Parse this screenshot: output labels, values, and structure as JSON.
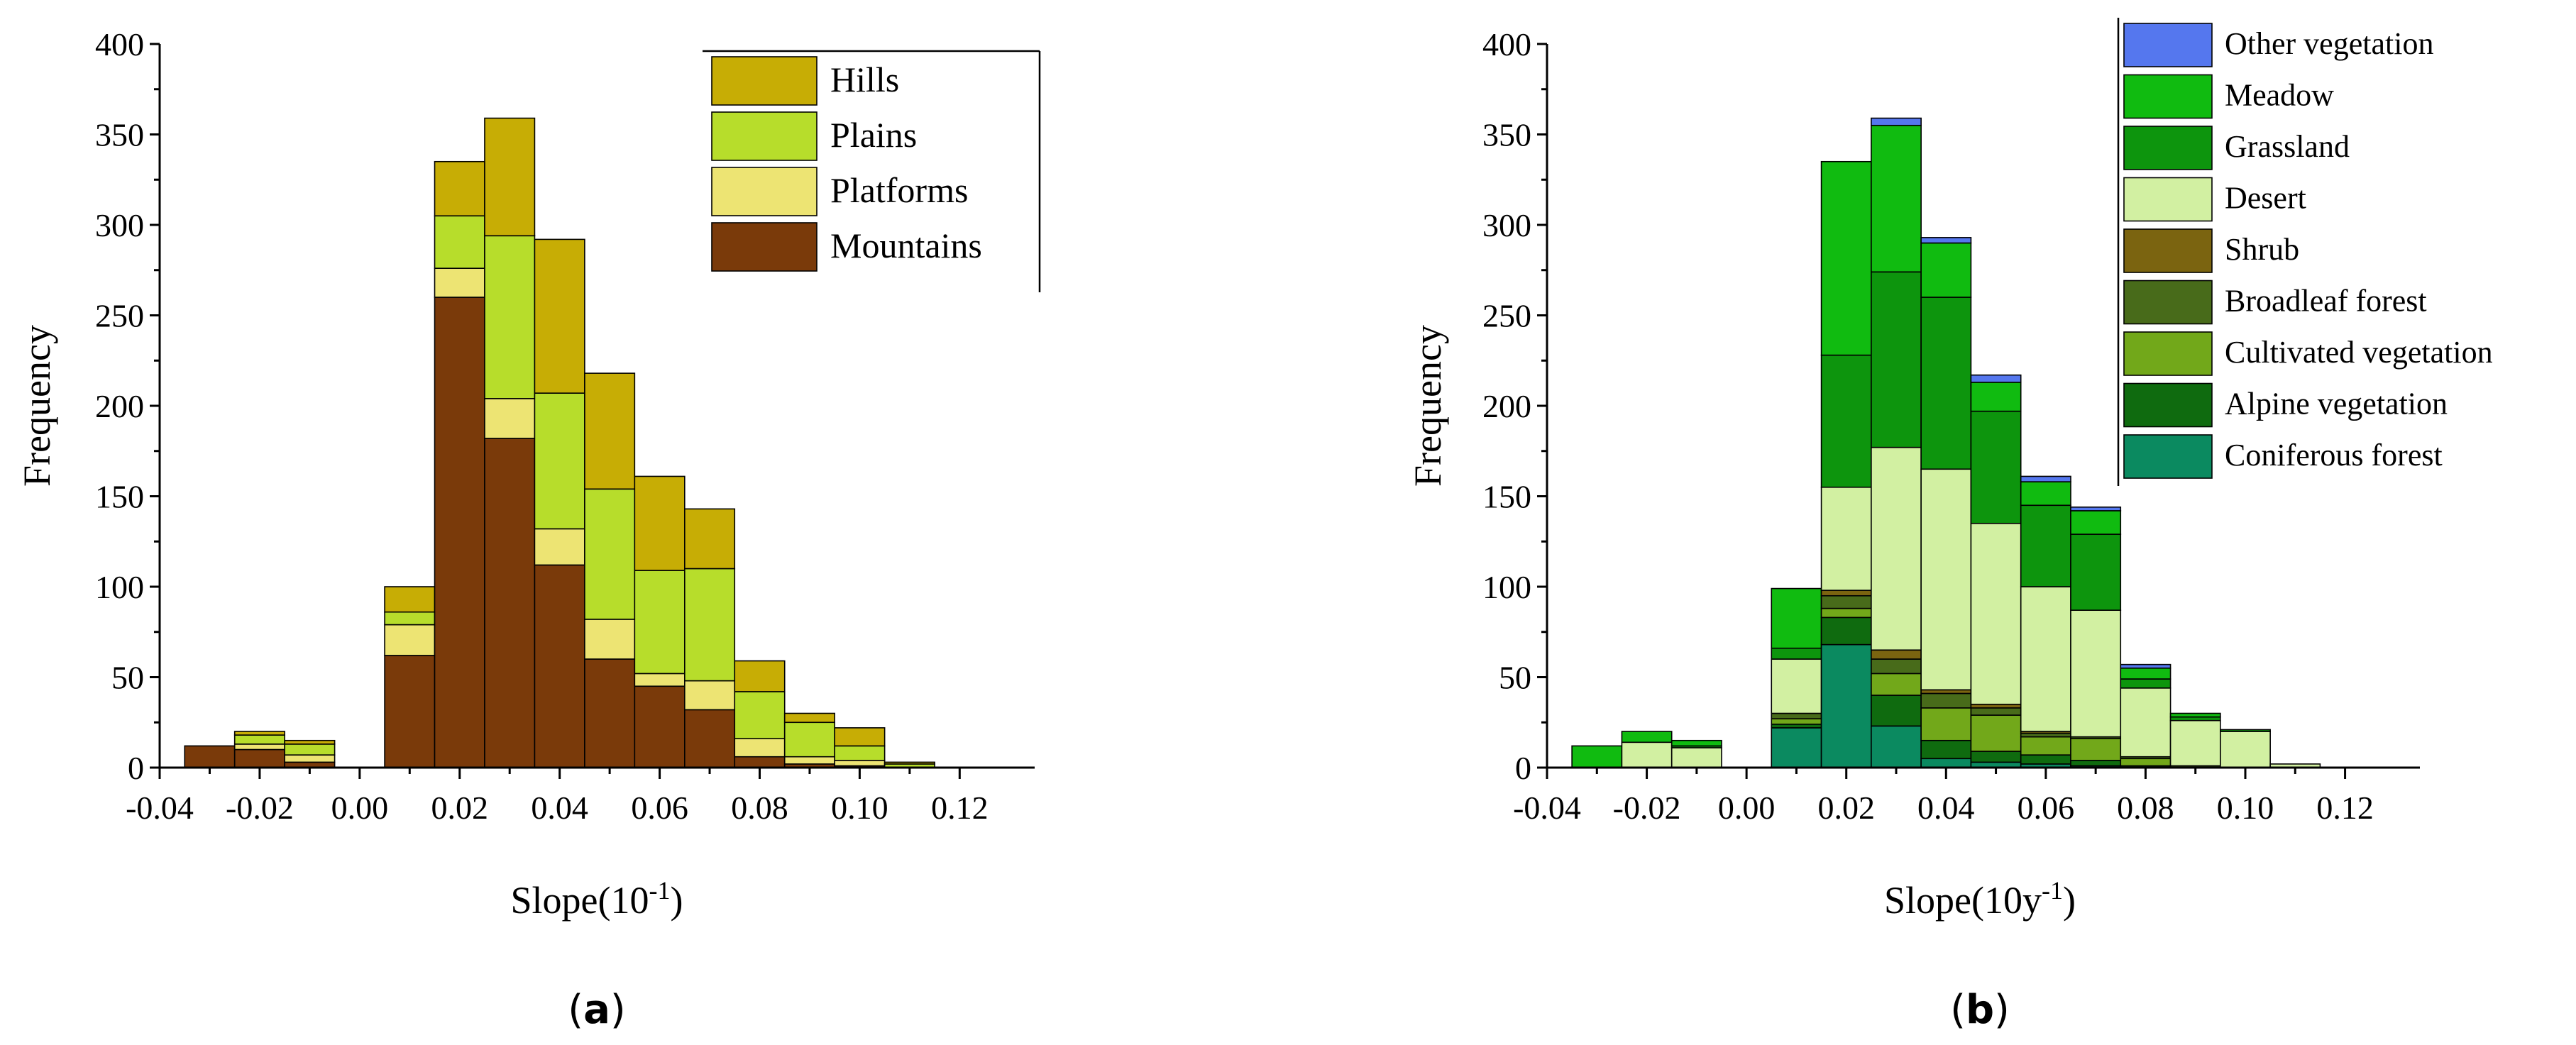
{
  "chart_data": [
    {
      "type": "bar",
      "stacked": true,
      "panel_label_open": "(",
      "panel_label_letter": "a",
      "panel_label_close": ")",
      "xlabel_main": "Slope(10",
      "xlabel_sup": "-1",
      "xlabel_close": ")",
      "ylabel": "Frequency",
      "xlim": [
        -0.04,
        0.135
      ],
      "ylim": [
        0,
        400
      ],
      "xticks": [
        "-0.04",
        "-0.02",
        "0.00",
        "0.02",
        "0.04",
        "0.06",
        "0.08",
        "0.10",
        "0.12"
      ],
      "yticks": [
        "0",
        "50",
        "100",
        "150",
        "200",
        "250",
        "300",
        "350",
        "400"
      ],
      "bin_width": 0.01,
      "bins": [
        -0.03,
        -0.02,
        -0.01,
        0.0,
        0.01,
        0.02,
        0.03,
        0.04,
        0.05,
        0.06,
        0.07,
        0.08,
        0.09,
        0.1,
        0.11,
        0.12
      ],
      "legend_position": "top-right",
      "series": [
        {
          "name": "Mountains",
          "color": "#7a3a0a",
          "values": [
            12,
            10,
            3,
            0,
            62,
            260,
            182,
            112,
            60,
            45,
            32,
            6,
            2,
            1,
            0,
            0
          ]
        },
        {
          "name": "Platforms",
          "color": "#ede473",
          "values": [
            0,
            3,
            4,
            0,
            17,
            16,
            22,
            20,
            22,
            7,
            16,
            10,
            4,
            3,
            0,
            0
          ]
        },
        {
          "name": "Plains",
          "color": "#b7dd2b",
          "values": [
            0,
            5,
            6,
            0,
            7,
            29,
            90,
            75,
            72,
            57,
            62,
            26,
            19,
            8,
            2,
            0
          ]
        },
        {
          "name": "Hills",
          "color": "#c7ad05",
          "values": [
            0,
            2,
            2,
            0,
            14,
            30,
            65,
            85,
            64,
            52,
            33,
            17,
            5,
            10,
            1,
            0
          ]
        }
      ]
    },
    {
      "type": "bar",
      "stacked": true,
      "panel_label_open": "(",
      "panel_label_letter": "b",
      "panel_label_close": ")",
      "xlabel_main": "Slope(10y",
      "xlabel_sup": "-1",
      "xlabel_close": ")",
      "ylabel": "Frequency",
      "xlim": [
        -0.04,
        0.135
      ],
      "ylim": [
        0,
        400
      ],
      "xticks": [
        "-0.04",
        "-0.02",
        "0.00",
        "0.02",
        "0.04",
        "0.06",
        "0.08",
        "0.10",
        "0.12"
      ],
      "yticks": [
        "0",
        "50",
        "100",
        "150",
        "200",
        "250",
        "300",
        "350",
        "400"
      ],
      "bin_width": 0.01,
      "bins": [
        -0.03,
        -0.02,
        -0.01,
        0.0,
        0.01,
        0.02,
        0.03,
        0.04,
        0.05,
        0.06,
        0.07,
        0.08,
        0.09,
        0.1,
        0.11,
        0.12
      ],
      "legend_position": "top-right",
      "series": [
        {
          "name": "Coniferous forest",
          "color": "#0b8a60",
          "values": [
            0,
            0,
            0,
            0,
            22,
            68,
            23,
            5,
            3,
            2,
            1,
            0,
            0,
            0,
            0,
            0
          ]
        },
        {
          "name": "Alpine vegetation",
          "color": "#0f6b0f",
          "values": [
            0,
            0,
            0,
            0,
            2,
            15,
            17,
            10,
            6,
            5,
            3,
            1,
            0,
            0,
            0,
            0
          ]
        },
        {
          "name": "Cultivated vegetation",
          "color": "#72a81a",
          "values": [
            0,
            0,
            0,
            0,
            3,
            5,
            12,
            18,
            20,
            10,
            12,
            4,
            1,
            0,
            0,
            0
          ]
        },
        {
          "name": "Broadleaf forest",
          "color": "#486b1a",
          "values": [
            0,
            0,
            0,
            0,
            3,
            7,
            8,
            8,
            4,
            2,
            1,
            1,
            0,
            0,
            0,
            0
          ]
        },
        {
          "name": "Shrub",
          "color": "#7b6410",
          "values": [
            0,
            0,
            0,
            0,
            0,
            3,
            5,
            2,
            2,
            1,
            0,
            0,
            0,
            0,
            0,
            0
          ]
        },
        {
          "name": "Desert",
          "color": "#d2f0a2",
          "values": [
            0,
            14,
            11,
            0,
            30,
            57,
            112,
            122,
            100,
            80,
            70,
            38,
            25,
            20,
            2,
            0
          ]
        },
        {
          "name": "Grassland",
          "color": "#0d950d",
          "values": [
            0,
            0,
            1,
            0,
            6,
            73,
            97,
            95,
            62,
            45,
            42,
            5,
            2,
            1,
            0,
            0
          ]
        },
        {
          "name": "Meadow",
          "color": "#10bb10",
          "values": [
            12,
            6,
            3,
            0,
            33,
            107,
            81,
            30,
            16,
            13,
            13,
            6,
            2,
            0,
            0,
            0
          ]
        },
        {
          "name": "Other vegetation",
          "color": "#5577ee",
          "values": [
            0,
            0,
            0,
            0,
            0,
            0,
            4,
            3,
            4,
            3,
            2,
            2,
            0,
            0,
            0,
            0
          ]
        }
      ]
    }
  ]
}
